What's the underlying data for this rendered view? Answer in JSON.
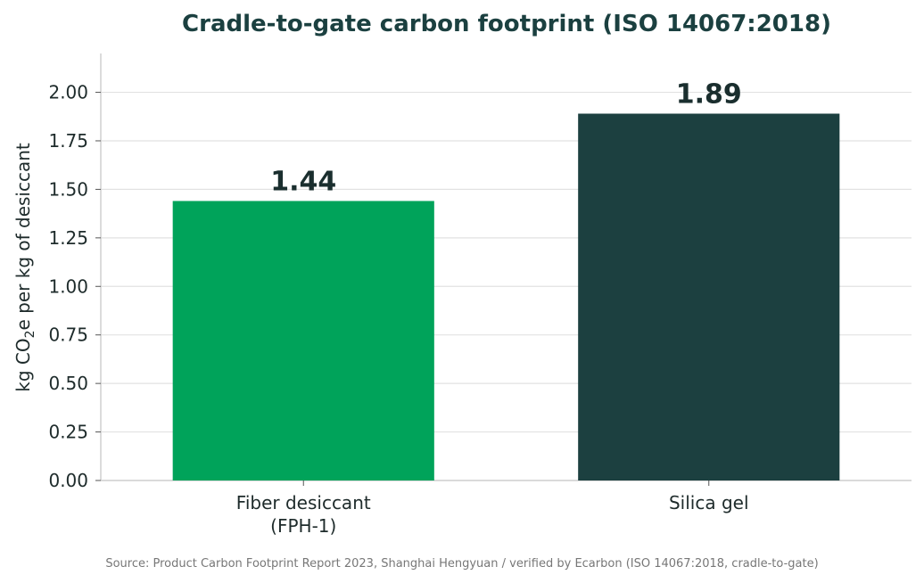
{
  "chart_data": {
    "type": "bar",
    "title": "Cradle-to-gate carbon footprint (ISO 14067:2018)",
    "ylabel": {
      "prefix": "kg CO",
      "subscript": "2",
      "suffix": "e per kg of desiccant"
    },
    "xlabel": "",
    "categories": [
      [
        "Fiber desiccant",
        "(FPH-1)"
      ],
      [
        "Silica gel"
      ]
    ],
    "values": [
      1.44,
      1.89
    ],
    "value_labels": [
      "1.44",
      "1.89"
    ],
    "colors": [
      "#00a35a",
      "#1c4040"
    ],
    "ylim": [
      0,
      2.2
    ],
    "yticks": [
      "0.00",
      "0.25",
      "0.50",
      "0.75",
      "1.00",
      "1.25",
      "1.50",
      "1.75",
      "2.00"
    ],
    "grid": true,
    "source": "Source: Product Carbon Footprint Report 2023, Shanghai Hengyuan / verified by Ecarbon (ISO 14067:2018, cradle-to-gate)"
  }
}
